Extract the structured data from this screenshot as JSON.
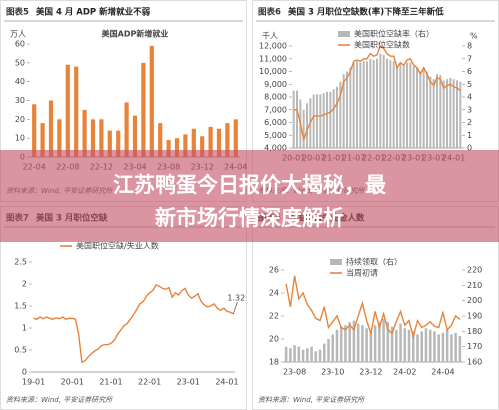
{
  "chart_data": [
    {
      "type": "bar",
      "figure_no": "图表5",
      "title": "美国 4 月 ADP 新增就业不弱",
      "subtitle": "美国ADP新增就业",
      "y_unit": "万人",
      "source": "资料来源：Wind, 平安证券研究所",
      "categories": [
        "22-04",
        null,
        null,
        null,
        "22-08",
        null,
        null,
        null,
        "22-12",
        null,
        null,
        null,
        "23-04",
        null,
        null,
        null,
        "23-08",
        null,
        null,
        null,
        "23-12",
        null,
        null,
        null,
        "24-04"
      ],
      "values": [
        28,
        18,
        30,
        20,
        49,
        48,
        25,
        20,
        20,
        14,
        14,
        29,
        22,
        50,
        59,
        18,
        9,
        10,
        12,
        15,
        11,
        16,
        15,
        18,
        20
      ],
      "color": "#e8833a",
      "ylim": [
        0,
        60
      ],
      "yticks": [
        0,
        10,
        20,
        30,
        40,
        50,
        60
      ]
    },
    {
      "type": "combo",
      "figure_no": "图表6",
      "title": "美国 3 月职位空缺数(率)下降至三年新低",
      "y_unit": "千人",
      "y2_unit": "%",
      "source": "资料来源：Wind, 平安证券研究所",
      "categories": [
        "20-01",
        null,
        null,
        null,
        null,
        null,
        "20-07",
        null,
        null,
        null,
        null,
        null,
        "21-01",
        null,
        null,
        null,
        null,
        null,
        "21-07",
        null,
        null,
        null,
        null,
        null,
        "22-01",
        null,
        null,
        null,
        null,
        null,
        "22-07",
        null,
        null,
        null,
        null,
        null,
        "23-01",
        null,
        null,
        null,
        null,
        null,
        "23-07",
        null,
        null,
        null,
        null,
        null,
        "24-01",
        null,
        null
      ],
      "series": [
        {
          "name": "美国职位空缺率（右）",
          "type": "bar",
          "axis": "y2",
          "color": "#b8b8b8",
          "values": [
            4.5,
            4.5,
            3.8,
            3.0,
            3.5,
            3.9,
            4.2,
            4.2,
            4.2,
            4.3,
            4.4,
            4.4,
            4.6,
            4.8,
            5.2,
            5.8,
            6.0,
            6.3,
            6.7,
            6.8,
            6.7,
            6.8,
            6.8,
            7.0,
            6.9,
            7.0,
            7.4,
            7.3,
            7.0,
            6.9,
            6.8,
            6.4,
            6.6,
            6.5,
            6.7,
            6.7,
            6.4,
            6.3,
            6.0,
            6.3,
            6.0,
            5.6,
            5.4,
            5.8,
            5.7,
            5.3,
            5.4,
            5.5,
            5.4,
            5.3,
            5.2
          ]
        },
        {
          "name": "美国职位空缺数",
          "type": "line",
          "axis": "y",
          "color": "#e8833a",
          "values": [
            7000,
            7000,
            6000,
            4600,
            5400,
            6000,
            6500,
            6500,
            6500,
            6600,
            6700,
            6800,
            7100,
            7500,
            8100,
            9200,
            9500,
            10000,
            10800,
            10900,
            10800,
            11000,
            11000,
            11400,
            11200,
            11300,
            12000,
            11800,
            11400,
            11200,
            11200,
            10300,
            10700,
            10500,
            10900,
            11000,
            10500,
            10300,
            9800,
            10300,
            9800,
            9200,
            8900,
            9500,
            9400,
            8700,
            8900,
            9000,
            8800,
            8700,
            8500
          ]
        }
      ],
      "ylim": [
        4000,
        12000
      ],
      "yticks": [
        {
          "value": 4000,
          "label": "4,000"
        },
        {
          "value": 5000,
          "label": "5,000"
        },
        {
          "value": 6000,
          "label": "6,000"
        },
        {
          "value": 7000,
          "label": "7,000"
        },
        {
          "value": 8000,
          "label": "8,000"
        },
        {
          "value": 9000,
          "label": "9,000"
        },
        {
          "value": 10000,
          "label": "10,000"
        },
        {
          "value": 11000,
          "label": "11,000"
        },
        {
          "value": 12000,
          "label": "12,000"
        }
      ],
      "y2lim": [
        0,
        8
      ],
      "y2ticks": [
        0,
        1,
        2,
        3,
        4,
        5,
        6,
        7,
        8
      ]
    },
    {
      "type": "combo",
      "figure_no": "图表7",
      "title": "美国 3 月职位空缺",
      "source": "资料来源：Wind, 平安证券研究所",
      "categories": [
        "19-01",
        null,
        null,
        null,
        null,
        null,
        null,
        null,
        null,
        null,
        null,
        null,
        "20-01",
        null,
        null,
        null,
        null,
        null,
        null,
        null,
        null,
        null,
        null,
        null,
        "21-01",
        null,
        null,
        null,
        null,
        null,
        null,
        null,
        null,
        null,
        null,
        null,
        "22-01",
        null,
        null,
        null,
        null,
        null,
        null,
        null,
        null,
        null,
        null,
        null,
        "23-01",
        null,
        null,
        null,
        null,
        null,
        null,
        null,
        null,
        null,
        null,
        null,
        "24-01",
        null,
        null
      ],
      "series": [
        {
          "name": "美国职位空缺/失业人数",
          "type": "line",
          "axis": "y",
          "color": "#e8833a",
          "values": [
            1.22,
            1.2,
            1.25,
            1.21,
            1.25,
            1.22,
            1.2,
            1.23,
            1.21,
            1.25,
            1.2,
            1.22,
            1.22,
            1.2,
            0.85,
            0.22,
            0.26,
            0.35,
            0.42,
            0.48,
            0.52,
            0.6,
            0.62,
            0.62,
            0.65,
            0.72,
            0.85,
            0.95,
            1.05,
            1.1,
            1.2,
            1.3,
            1.42,
            1.55,
            1.6,
            1.72,
            1.8,
            1.85,
            1.98,
            1.95,
            1.9,
            1.88,
            1.92,
            1.7,
            1.8,
            1.75,
            1.85,
            1.9,
            1.75,
            1.68,
            1.72,
            1.78,
            1.6,
            1.52,
            1.48,
            1.5,
            1.55,
            1.45,
            1.4,
            1.45,
            1.38,
            1.36,
            1.32
          ]
        }
      ],
      "annotations": [
        "1.32"
      ],
      "ylim": [
        0,
        2.5
      ],
      "yticks": [
        0,
        0.5,
        1,
        1.5,
        2,
        2.5
      ]
    },
    {
      "type": "combo",
      "figure_no": "图表8",
      "title": "美国申请失业金人数",
      "source": "资料来源：Wind, 平安证券研究所",
      "categories": [
        null,
        null,
        "23-08",
        null,
        null,
        null,
        null,
        null,
        null,
        null,
        null,
        "23-10",
        null,
        null,
        null,
        null,
        null,
        null,
        null,
        null,
        "23-12",
        null,
        null,
        null,
        null,
        null,
        null,
        null,
        "24-02",
        null,
        null,
        null,
        null,
        null,
        null,
        null,
        null,
        "24-04",
        null,
        null,
        null,
        null
      ],
      "series": [
        {
          "name": "持续领取（右）",
          "type": "bar",
          "axis": "y2",
          "color": "#b8b8b8",
          "values": [
            170,
            169,
            171,
            170,
            168,
            169,
            170,
            167,
            168,
            172,
            175,
            178,
            181,
            183,
            184,
            186,
            187,
            185,
            184,
            182,
            180,
            184,
            186,
            188,
            186,
            183,
            181,
            185,
            182,
            181,
            180,
            178,
            180,
            182,
            181,
            180,
            178,
            179,
            181,
            178,
            179,
            177
          ]
        },
        {
          "name": "当周初请",
          "type": "line",
          "axis": "y",
          "color": "#e8833a",
          "values": [
            24.8,
            22.8,
            25.5,
            23.5,
            24.0,
            23.0,
            22.5,
            21.8,
            21.6,
            22.8,
            21.0,
            21.5,
            22.0,
            21.0,
            20.8,
            21.2,
            20.8,
            22.0,
            23.1,
            21.6,
            20.5,
            22.4,
            21.0,
            22.2,
            20.8,
            20.5,
            21.5,
            22.4,
            21.2,
            21.6,
            20.2,
            21.6,
            21.0,
            21.2,
            21.5,
            21.1,
            21.0,
            22.3,
            20.8,
            21.2,
            22.0,
            21.7
          ]
        }
      ],
      "ylim": [
        18,
        26
      ],
      "yticks": [
        18,
        20,
        22,
        24,
        26
      ],
      "y2lim": [
        160,
        220
      ],
      "y2ticks": [
        160,
        170,
        180,
        190,
        200,
        210,
        220
      ]
    }
  ],
  "banner": {
    "lines": [
      "江苏鸭蛋今日报价大揭秘，最",
      "新市场行情深度解析"
    ]
  }
}
